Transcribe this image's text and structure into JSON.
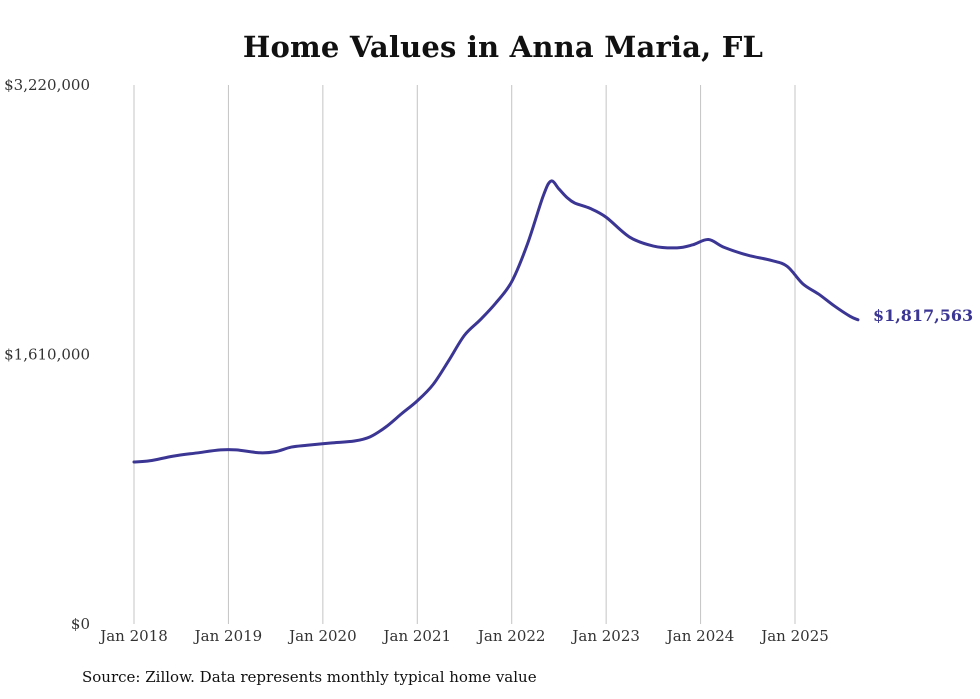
{
  "chart_data": {
    "type": "line",
    "title": "Home Values in Anna Maria, FL",
    "source": "Source: Zillow. Data represents monthly typical home value",
    "xlabel": "",
    "ylabel": "",
    "ylim": [
      0,
      3220000
    ],
    "y_ticks": [
      0,
      1610000,
      3220000
    ],
    "y_tick_labels": [
      "$0",
      "$1,610,000",
      "$3,220,000"
    ],
    "x_range": [
      "2017-11",
      "2025-12"
    ],
    "x_ticks": [
      "2018-01",
      "2019-01",
      "2020-01",
      "2021-01",
      "2022-01",
      "2023-01",
      "2024-01",
      "2025-01"
    ],
    "x_tick_labels": [
      "Jan 2018",
      "Jan 2019",
      "Jan 2020",
      "Jan 2021",
      "Jan 2022",
      "Jan 2023",
      "Jan 2024",
      "Jan 2025"
    ],
    "grid": {
      "vertical": true,
      "horizontal": false
    },
    "line_color": "#3b3593",
    "end_label": "$1,817,563",
    "series": [
      {
        "x": [
          "2018-01",
          "2018-03",
          "2018-06",
          "2018-09",
          "2018-12",
          "2019-02",
          "2019-05",
          "2019-07",
          "2019-09",
          "2019-11",
          "2020-02",
          "2020-05",
          "2020-07",
          "2020-09",
          "2020-11",
          "2021-01",
          "2021-03",
          "2021-05",
          "2021-07",
          "2021-09",
          "2021-11",
          "2022-01",
          "2022-03",
          "2022-05",
          "2022-06",
          "2022-07",
          "2022-08",
          "2022-09",
          "2022-11",
          "2023-01",
          "2023-04",
          "2023-07",
          "2023-10",
          "2023-12",
          "2024-02",
          "2024-04",
          "2024-07",
          "2024-10",
          "2024-12",
          "2025-02",
          "2025-04",
          "2025-06",
          "2025-08",
          "2025-09"
        ],
        "values": [
          968000,
          975000,
          1003000,
          1022000,
          1040000,
          1040000,
          1023000,
          1030000,
          1057000,
          1068000,
          1081000,
          1093000,
          1118000,
          1177000,
          1256000,
          1333000,
          1430000,
          1574000,
          1725000,
          1817000,
          1919000,
          2045000,
          2270000,
          2557000,
          2646000,
          2599000,
          2549000,
          2515000,
          2482000,
          2430000,
          2311000,
          2258000,
          2247000,
          2265000,
          2297000,
          2250000,
          2203000,
          2172000,
          2137000,
          2032000,
          1971000,
          1900000,
          1838000,
          1817563
        ]
      }
    ]
  }
}
